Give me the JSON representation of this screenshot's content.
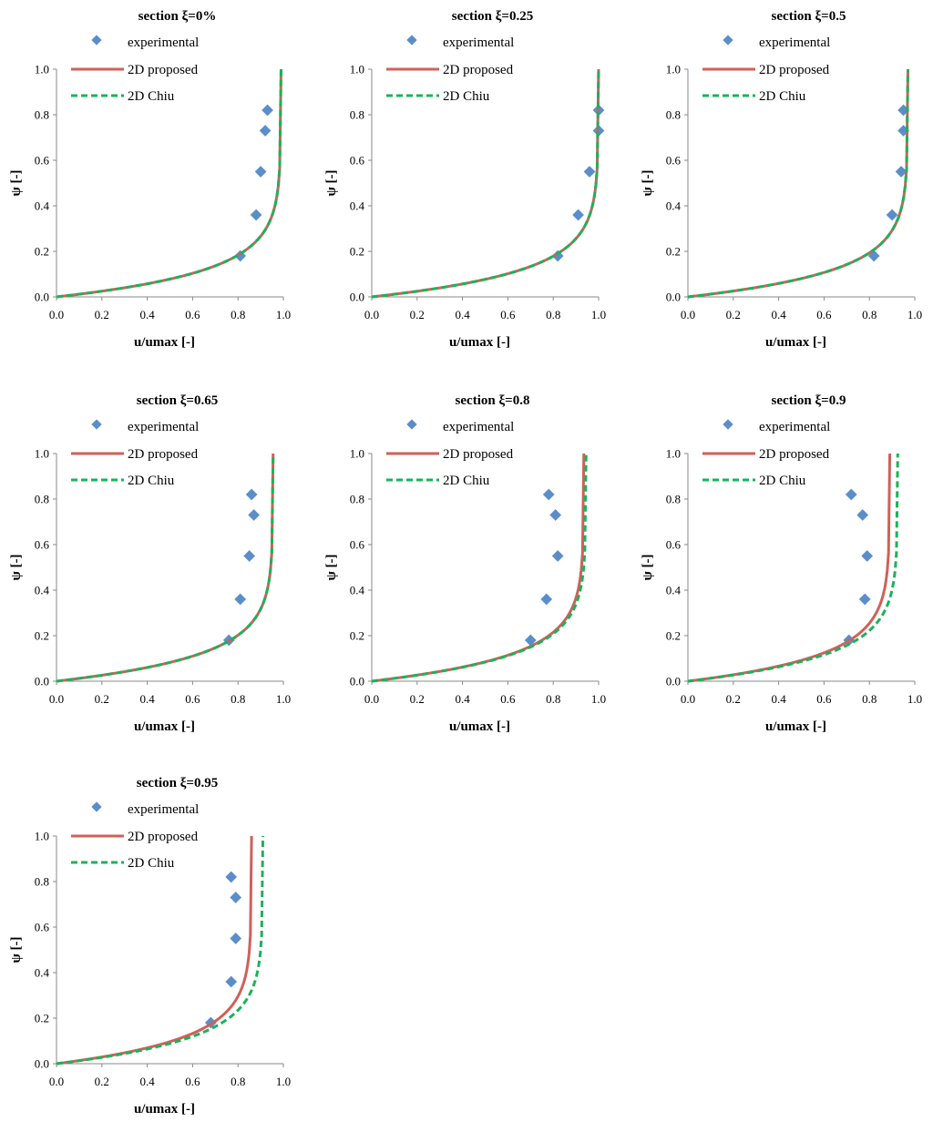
{
  "colors": {
    "experimental": "#5b8ec9",
    "proposed": "#d0605a",
    "chiu": "#1ab35a",
    "axis": "#888888"
  },
  "chart_data": [
    {
      "type": "scatter",
      "title": "section ξ=0%",
      "xlabel": "u/umax [-]",
      "ylabel": "ψ [-]",
      "xlim": [
        0,
        1
      ],
      "ylim": [
        0,
        1
      ],
      "xticks": [
        "0.0",
        "0.2",
        "0.4",
        "0.6",
        "0.8",
        "1.0"
      ],
      "yticks": [
        "0.0",
        "0.2",
        "0.4",
        "0.6",
        "0.8",
        "1.0"
      ],
      "grid": false,
      "legend": {
        "position": "top-left",
        "entries": [
          "experimental",
          "2D proposed",
          "2D Chiu"
        ]
      },
      "series": [
        {
          "name": "experimental",
          "kind": "markers",
          "x": [
            0.81,
            0.88,
            0.9,
            0.92,
            0.93
          ],
          "y": [
            0.18,
            0.36,
            0.55,
            0.73,
            0.82
          ]
        },
        {
          "name": "2D proposed",
          "kind": "solid-line",
          "umax_ratio": 0.99
        },
        {
          "name": "2D Chiu",
          "kind": "dashed-line",
          "umax_ratio": 0.99
        }
      ]
    },
    {
      "type": "scatter",
      "title": "section ξ=0.25",
      "xlabel": "u/umax [-]",
      "ylabel": "ψ [-]",
      "xlim": [
        0,
        1
      ],
      "ylim": [
        0,
        1
      ],
      "xticks": [
        "0.0",
        "0.2",
        "0.4",
        "0.6",
        "0.8",
        "1.0"
      ],
      "yticks": [
        "0.0",
        "0.2",
        "0.4",
        "0.6",
        "0.8",
        "1.0"
      ],
      "grid": false,
      "legend": {
        "position": "top-left",
        "entries": [
          "experimental",
          "2D proposed",
          "2D Chiu"
        ]
      },
      "series": [
        {
          "name": "experimental",
          "kind": "markers",
          "x": [
            0.82,
            0.91,
            0.96,
            1.0,
            1.0
          ],
          "y": [
            0.18,
            0.36,
            0.55,
            0.73,
            0.82
          ]
        },
        {
          "name": "2D proposed",
          "kind": "solid-line",
          "umax_ratio": 1.0
        },
        {
          "name": "2D Chiu",
          "kind": "dashed-line",
          "umax_ratio": 1.0
        }
      ]
    },
    {
      "type": "scatter",
      "title": "section ξ=0.5",
      "xlabel": "u/umax [-]",
      "ylabel": "ψ [-]",
      "xlim": [
        0,
        1
      ],
      "ylim": [
        0,
        1
      ],
      "xticks": [
        "0.0",
        "0.2",
        "0.4",
        "0.6",
        "0.8",
        "1.0"
      ],
      "yticks": [
        "0.0",
        "0.2",
        "0.4",
        "0.6",
        "0.8",
        "1.0"
      ],
      "grid": false,
      "legend": {
        "position": "top-left",
        "entries": [
          "experimental",
          "2D proposed",
          "2D Chiu"
        ]
      },
      "series": [
        {
          "name": "experimental",
          "kind": "markers",
          "x": [
            0.82,
            0.9,
            0.94,
            0.95,
            0.95
          ],
          "y": [
            0.18,
            0.36,
            0.55,
            0.73,
            0.82
          ]
        },
        {
          "name": "2D proposed",
          "kind": "solid-line",
          "umax_ratio": 0.97
        },
        {
          "name": "2D Chiu",
          "kind": "dashed-line",
          "umax_ratio": 0.97
        }
      ]
    },
    {
      "type": "scatter",
      "title": "section ξ=0.65",
      "xlabel": "u/umax [-]",
      "ylabel": "ψ [-]",
      "xlim": [
        0,
        1
      ],
      "ylim": [
        0,
        1
      ],
      "xticks": [
        "0.0",
        "0.2",
        "0.4",
        "0.6",
        "0.8",
        "1.0"
      ],
      "yticks": [
        "0.0",
        "0.2",
        "0.4",
        "0.6",
        "0.8",
        "1.0"
      ],
      "grid": false,
      "legend": {
        "position": "top-left",
        "entries": [
          "experimental",
          "2D proposed",
          "2D Chiu"
        ]
      },
      "series": [
        {
          "name": "experimental",
          "kind": "markers",
          "x": [
            0.76,
            0.81,
            0.85,
            0.87,
            0.86
          ],
          "y": [
            0.18,
            0.36,
            0.55,
            0.73,
            0.82
          ]
        },
        {
          "name": "2D proposed",
          "kind": "solid-line",
          "umax_ratio": 0.955
        },
        {
          "name": "2D Chiu",
          "kind": "dashed-line",
          "umax_ratio": 0.955
        }
      ]
    },
    {
      "type": "scatter",
      "title": "section ξ=0.8",
      "xlabel": "u/umax [-]",
      "ylabel": "ψ [-]",
      "xlim": [
        0,
        1
      ],
      "ylim": [
        0,
        1
      ],
      "xticks": [
        "0.0",
        "0.2",
        "0.4",
        "0.6",
        "0.8",
        "1.0"
      ],
      "yticks": [
        "0.0",
        "0.2",
        "0.4",
        "0.6",
        "0.8",
        "1.0"
      ],
      "grid": false,
      "legend": {
        "position": "top-left",
        "entries": [
          "experimental",
          "2D proposed",
          "2D Chiu"
        ]
      },
      "series": [
        {
          "name": "experimental",
          "kind": "markers",
          "x": [
            0.7,
            0.77,
            0.82,
            0.81,
            0.78
          ],
          "y": [
            0.18,
            0.36,
            0.55,
            0.73,
            0.82
          ]
        },
        {
          "name": "2D proposed",
          "kind": "solid-line",
          "umax_ratio": 0.935
        },
        {
          "name": "2D Chiu",
          "kind": "dashed-line",
          "umax_ratio": 0.945
        }
      ]
    },
    {
      "type": "scatter",
      "title": "section ξ=0.9",
      "xlabel": "u/umax [-]",
      "ylabel": "ψ [-]",
      "xlim": [
        0,
        1
      ],
      "ylim": [
        0,
        1
      ],
      "xticks": [
        "0.0",
        "0.2",
        "0.4",
        "0.6",
        "0.8",
        "1.0"
      ],
      "yticks": [
        "0.0",
        "0.2",
        "0.4",
        "0.6",
        "0.8",
        "1.0"
      ],
      "grid": false,
      "legend": {
        "position": "top-left",
        "entries": [
          "experimental",
          "2D proposed",
          "2D Chiu"
        ]
      },
      "series": [
        {
          "name": "experimental",
          "kind": "markers",
          "x": [
            0.71,
            0.78,
            0.79,
            0.77,
            0.72
          ],
          "y": [
            0.18,
            0.36,
            0.55,
            0.73,
            0.82
          ]
        },
        {
          "name": "2D proposed",
          "kind": "solid-line",
          "umax_ratio": 0.89
        },
        {
          "name": "2D Chiu",
          "kind": "dashed-line",
          "umax_ratio": 0.925
        }
      ]
    },
    {
      "type": "scatter",
      "title": "section ξ=0.95",
      "xlabel": "u/umax [-]",
      "ylabel": "ψ [-]",
      "xlim": [
        0,
        1
      ],
      "ylim": [
        0,
        1
      ],
      "xticks": [
        "0.0",
        "0.2",
        "0.4",
        "0.6",
        "0.8",
        "1.0"
      ],
      "yticks": [
        "0.0",
        "0.2",
        "0.4",
        "0.6",
        "0.8",
        "1.0"
      ],
      "grid": false,
      "legend": {
        "position": "top-left",
        "entries": [
          "experimental",
          "2D proposed",
          "2D Chiu"
        ]
      },
      "series": [
        {
          "name": "experimental",
          "kind": "markers",
          "x": [
            0.68,
            0.77,
            0.79,
            0.79,
            0.77
          ],
          "y": [
            0.18,
            0.36,
            0.55,
            0.73,
            0.82
          ]
        },
        {
          "name": "2D proposed",
          "kind": "solid-line",
          "umax_ratio": 0.86
        },
        {
          "name": "2D Chiu",
          "kind": "dashed-line",
          "umax_ratio": 0.91
        }
      ]
    }
  ]
}
